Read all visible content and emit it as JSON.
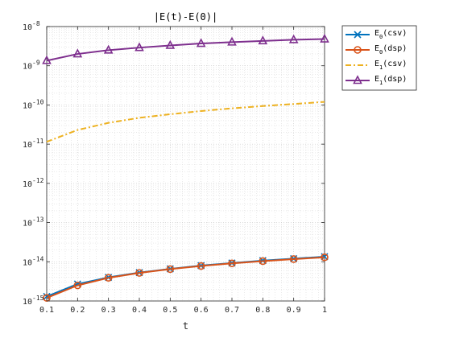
{
  "chart_data": {
    "type": "line",
    "title": "|E(t)-E(0)|",
    "xlabel": "t",
    "ylabel": "",
    "xlim": [
      0.1,
      1
    ],
    "ylim": [
      1e-15,
      1e-08
    ],
    "yscale": "log",
    "grid": true,
    "minor_grid": true,
    "legend_position": "outside-top-right",
    "x_ticks": [
      "0.1",
      "0.2",
      "0.3",
      "0.4",
      "0.5",
      "0.6",
      "0.7",
      "0.8",
      "0.9",
      "1"
    ],
    "y_ticks": [
      {
        "base": "10",
        "exp": "-15",
        "value": 1e-15
      },
      {
        "base": "10",
        "exp": "-14",
        "value": 1e-14
      },
      {
        "base": "10",
        "exp": "-13",
        "value": 1e-13
      },
      {
        "base": "10",
        "exp": "-12",
        "value": 1e-12
      },
      {
        "base": "10",
        "exp": "-11",
        "value": 1e-11
      },
      {
        "base": "10",
        "exp": "-10",
        "value": 1e-10
      },
      {
        "base": "10",
        "exp": "-9",
        "value": 1e-09
      },
      {
        "base": "10",
        "exp": "-8",
        "value": 1e-08
      }
    ],
    "x": [
      0.1,
      0.2,
      0.3,
      0.4,
      0.5,
      0.6,
      0.7,
      0.8,
      0.9,
      1.0
    ],
    "series": [
      {
        "name": "E0(csv)",
        "legend_main": "E",
        "legend_sub": "0",
        "legend_suffix": "(csv)",
        "color": "#0072BD",
        "marker": "x",
        "dash": "solid",
        "values": [
          1.3e-15,
          2.7e-15,
          4e-15,
          5.3e-15,
          6.6e-15,
          8e-15,
          9.3e-15,
          1.07e-14,
          1.2e-14,
          1.35e-14
        ]
      },
      {
        "name": "E0(dsp)",
        "legend_main": "E",
        "legend_sub": "0",
        "legend_suffix": "(dsp)",
        "color": "#D95319",
        "marker": "o",
        "dash": "solid",
        "values": [
          1.2e-15,
          2.5e-15,
          3.9e-15,
          5.2e-15,
          6.5e-15,
          7.8e-15,
          9.1e-15,
          1.04e-14,
          1.17e-14,
          1.3e-14
        ]
      },
      {
        "name": "E1(csv)",
        "legend_main": "E",
        "legend_sub": "1",
        "legend_suffix": "(csv)",
        "color": "#EDB120",
        "marker": "none",
        "dash": "dashdot",
        "values": [
          1.15e-11,
          2.3e-11,
          3.5e-11,
          4.7e-11,
          5.8e-11,
          7e-11,
          8.2e-11,
          9.4e-11,
          1.06e-10,
          1.2e-10
        ]
      },
      {
        "name": "E1(dsp)",
        "legend_main": "E",
        "legend_sub": "1",
        "legend_suffix": "(dsp)",
        "color": "#7E2F8E",
        "marker": "triangle",
        "dash": "solid",
        "values": [
          1.35e-09,
          2e-09,
          2.5e-09,
          2.9e-09,
          3.3e-09,
          3.7e-09,
          4e-09,
          4.3e-09,
          4.6e-09,
          4.8e-09
        ]
      }
    ]
  }
}
